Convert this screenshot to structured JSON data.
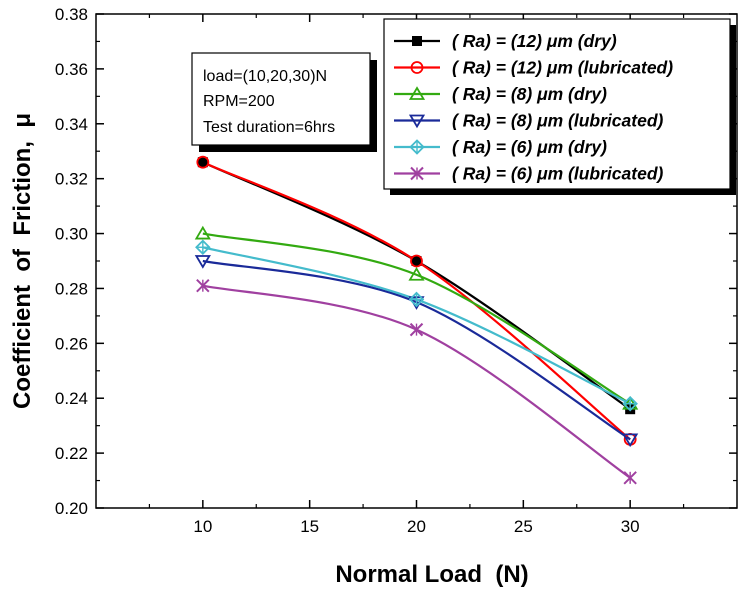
{
  "chart_data": {
    "type": "line",
    "title": "",
    "xlabel": "Normal Load  (N)",
    "ylabel": "Coefficient  of  Friction,  μ",
    "x": [
      10,
      20,
      30
    ],
    "xlim": [
      5,
      35
    ],
    "ylim": [
      0.2,
      0.38
    ],
    "xticks": [
      10,
      15,
      20,
      25,
      30
    ],
    "xtick_labels": [
      "10",
      "15",
      "20",
      "25",
      "30"
    ],
    "yticks": [
      0.2,
      0.22,
      0.24,
      0.26,
      0.28,
      0.3,
      0.32,
      0.34,
      0.36,
      0.38
    ],
    "ytick_labels": [
      "0.20",
      "0.22",
      "0.24",
      "0.26",
      "0.28",
      "0.30",
      "0.32",
      "0.34",
      "0.36",
      "0.38"
    ],
    "grid": false,
    "legend_position": "top-right",
    "series": [
      {
        "name": "( Ra) =  (12)  μm (dry)",
        "values": [
          0.326,
          0.29,
          0.236
        ],
        "color": "#000000",
        "marker": "filled-square"
      },
      {
        "name": "( Ra) =  (12)  μm (lubricated)",
        "values": [
          0.326,
          0.29,
          0.225
        ],
        "color": "#ff0000",
        "marker": "circle"
      },
      {
        "name": "( Ra) =   (8)  μm (dry)",
        "values": [
          0.3,
          0.285,
          0.238
        ],
        "color": "#33aa11",
        "marker": "triangle-up"
      },
      {
        "name": "( Ra) =   (8)  μm (lubricated)",
        "values": [
          0.29,
          0.275,
          0.225
        ],
        "color": "#1a2a99",
        "marker": "triangle-down"
      },
      {
        "name": "( Ra) =   (6)  μm (dry)",
        "values": [
          0.295,
          0.276,
          0.238
        ],
        "color": "#44bbcc",
        "marker": "diamond-cross"
      },
      {
        "name": "( Ra) =   (6)  μm (lubricated)",
        "values": [
          0.281,
          0.265,
          0.211
        ],
        "color": "#a040a0",
        "marker": "x-star"
      }
    ],
    "annotation_lines": [
      "load=(10,20,30)N",
      "RPM=200",
      "Test duration=6hrs"
    ]
  }
}
